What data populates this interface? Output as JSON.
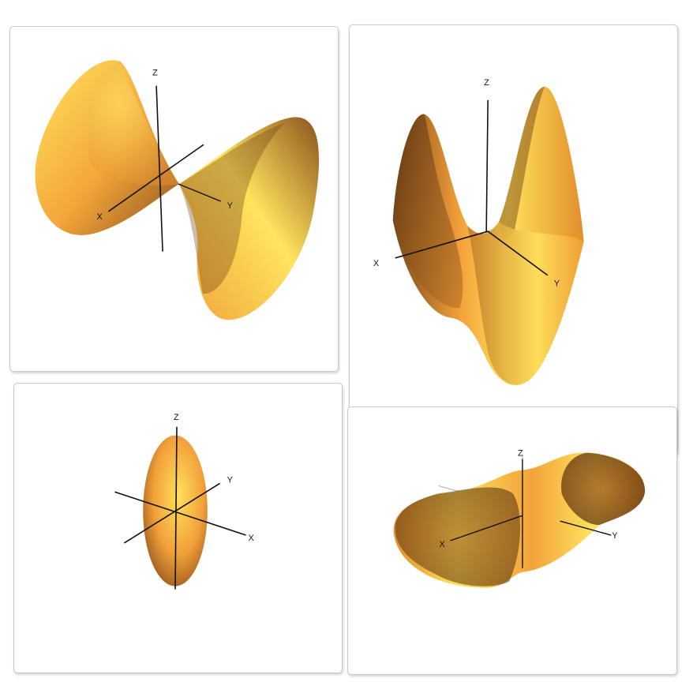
{
  "colors": {
    "surface_light": "#ffe45e",
    "surface_mid": "#f6a63a",
    "surface_dark": "#7d4a18",
    "axis": "#111111",
    "panel_border": "#c9c9c9"
  },
  "panels": [
    {
      "surface": "double cone",
      "axes": {
        "x": "X",
        "y": "Y",
        "z": "Z"
      }
    },
    {
      "surface": "hyperbolic paraboloid",
      "axes": {
        "x": "X",
        "y": "Y",
        "z": "Z"
      }
    },
    {
      "surface": "ellipsoid",
      "axes": {
        "x": "X",
        "y": "Y",
        "z": "Z"
      }
    },
    {
      "surface": "hyperboloid of one sheet",
      "axes": {
        "x": "X",
        "y": "Y",
        "z": "Z"
      }
    }
  ]
}
